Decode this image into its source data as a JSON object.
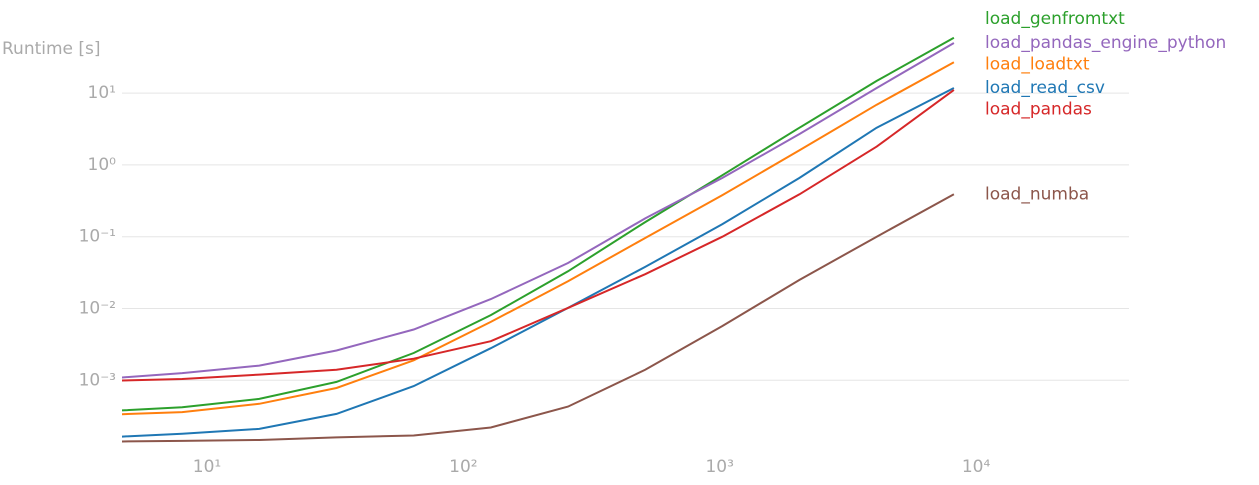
{
  "chart_data": {
    "type": "line",
    "y_label": "Runtime [s]",
    "log_x": true,
    "log_y": true,
    "xlim": [
      4.66,
      39500
    ],
    "ylim": [
      8e-05,
      55
    ],
    "xticks": [
      {
        "value": 10,
        "label": "10¹"
      },
      {
        "value": 100,
        "label": "10²"
      },
      {
        "value": 1000,
        "label": "10³"
      },
      {
        "value": 10000,
        "label": "10⁴"
      }
    ],
    "yticks": [
      {
        "value": 0.001,
        "label": "10⁻³"
      },
      {
        "value": 0.01,
        "label": "10⁻²"
      },
      {
        "value": 0.1,
        "label": "10⁻¹"
      },
      {
        "value": 1,
        "label": "10⁰"
      },
      {
        "value": 10,
        "label": "10¹"
      }
    ],
    "grid": true,
    "x": [
      4,
      8,
      16,
      32,
      64,
      128,
      256,
      512,
      1024,
      2048,
      4096,
      8192
    ],
    "series": [
      {
        "name": "load_genfromtxt",
        "color": "#2ca02c",
        "values": [
          0.00037,
          0.00042,
          0.00055,
          0.00095,
          0.0024,
          0.0081,
          0.033,
          0.16,
          0.72,
          3.3,
          14.8,
          59
        ]
      },
      {
        "name": "load_pandas_engine_python",
        "color": "#9467bd",
        "values": [
          0.00105,
          0.00126,
          0.0016,
          0.0026,
          0.0051,
          0.0135,
          0.043,
          0.18,
          0.66,
          2.7,
          11.8,
          50
        ]
      },
      {
        "name": "load_loadtxt",
        "color": "#ff7f0e",
        "values": [
          0.00033,
          0.00036,
          0.00047,
          0.00078,
          0.0019,
          0.0065,
          0.024,
          0.096,
          0.38,
          1.6,
          6.9,
          27
        ]
      },
      {
        "name": "load_read_csv",
        "color": "#1f77b4",
        "values": [
          0.00016,
          0.00018,
          0.00021,
          0.00034,
          0.00083,
          0.0028,
          0.0102,
          0.038,
          0.15,
          0.66,
          3.3,
          11.8
        ]
      },
      {
        "name": "load_pandas",
        "color": "#d62728",
        "values": [
          0.00098,
          0.00104,
          0.0012,
          0.0014,
          0.002,
          0.0035,
          0.0102,
          0.03,
          0.1,
          0.39,
          1.8,
          11.1
        ]
      },
      {
        "name": "load_numba",
        "color": "#8c564b",
        "values": [
          0.00014,
          0.000143,
          0.000147,
          0.00016,
          0.00017,
          0.00022,
          0.00043,
          0.0014,
          0.0057,
          0.025,
          0.1,
          0.39
        ]
      }
    ]
  }
}
